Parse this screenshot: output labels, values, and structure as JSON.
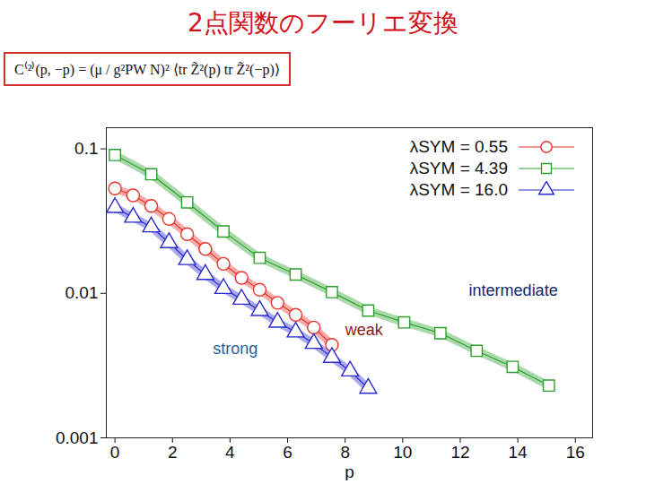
{
  "chart_data": {
    "type": "line",
    "title": "2点関数のフーリエ変換",
    "subtitle": "C⁽²⁾(p, −p) = (μ / g²PW N)² ⟨tr Z̃²(p) tr Z̃²(−p)⟩",
    "x_label": "p",
    "log": "y",
    "grid": false,
    "legend": "top-right",
    "xlim": [
      -0.3,
      16.6
    ],
    "xticks": [
      0,
      2,
      4,
      6,
      8,
      10,
      12,
      14,
      16
    ],
    "ylim": [
      0.001,
      0.14
    ],
    "yticks": [
      0.001,
      0.01,
      0.1
    ],
    "series": [
      {
        "name": "λSYM = 0.55",
        "color": "#e8322a",
        "marker": "circle",
        "x": [
          0,
          0.63,
          1.26,
          1.88,
          2.51,
          3.14,
          3.77,
          4.4,
          5.03,
          5.65,
          6.28,
          6.91,
          7.54
        ],
        "values": [
          0.0532,
          0.0476,
          0.0403,
          0.0327,
          0.0257,
          0.0203,
          0.016,
          0.0128,
          0.0106,
          0.0086,
          0.0071,
          0.0058,
          0.0044
        ]
      },
      {
        "name": "λSYM = 4.39",
        "color": "#2ca02c",
        "marker": "square",
        "x": [
          0,
          1.26,
          2.51,
          3.77,
          5.03,
          6.28,
          7.54,
          8.8,
          10.05,
          11.31,
          12.57,
          13.82,
          15.08
        ],
        "values": [
          0.0906,
          0.0667,
          0.0426,
          0.0268,
          0.0176,
          0.0135,
          0.0102,
          0.0076,
          0.0063,
          0.0053,
          0.004,
          0.0031,
          0.0023
        ]
      },
      {
        "name": "λSYM = 16.0",
        "color": "#2a2ad0",
        "marker": "triangle",
        "x": [
          0,
          0.63,
          1.26,
          1.88,
          2.51,
          3.14,
          3.77,
          4.4,
          5.03,
          5.65,
          6.28,
          6.91,
          7.54,
          8.17,
          8.8
        ],
        "values": [
          0.0392,
          0.0336,
          0.0288,
          0.0224,
          0.0171,
          0.0135,
          0.0108,
          0.0091,
          0.0076,
          0.0063,
          0.0054,
          0.0045,
          0.0036,
          0.0029,
          0.0022
        ]
      }
    ],
    "annotations": [
      {
        "text": "intermediate",
        "x": 12.3,
        "y": 0.0104
      },
      {
        "text": "weak",
        "x": 8.0,
        "y": 0.0056
      },
      {
        "text": "strong",
        "x": 3.4,
        "y": 0.0041
      }
    ]
  }
}
